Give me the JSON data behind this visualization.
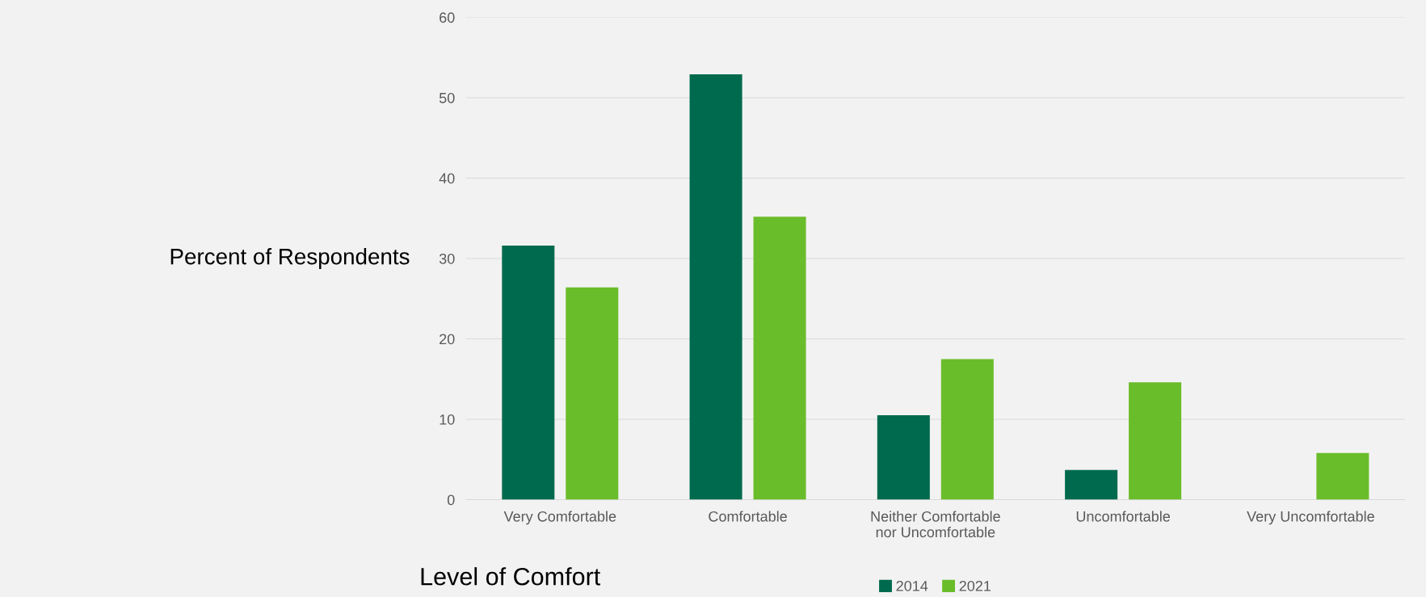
{
  "chart_data": {
    "type": "bar",
    "xlabel": "Level of Comfort",
    "ylabel": "Percent of Respondents",
    "categories": [
      "Very Comfortable",
      "Comfortable",
      "Neither Comfortable\nnor Uncomfortable",
      "Uncomfortable",
      "Very Uncomfortable"
    ],
    "series": [
      {
        "name": "2014",
        "color": "#006a4e",
        "values": [
          31.6,
          52.9,
          10.5,
          3.7,
          0
        ]
      },
      {
        "name": "2021",
        "color": "#6abd2a",
        "values": [
          26.4,
          35.2,
          17.5,
          14.6,
          5.8
        ]
      }
    ],
    "ylim": [
      0,
      60
    ],
    "yticks": [
      0,
      10,
      20,
      30,
      40,
      50,
      60
    ],
    "grid": "y",
    "legend": "bottom"
  }
}
